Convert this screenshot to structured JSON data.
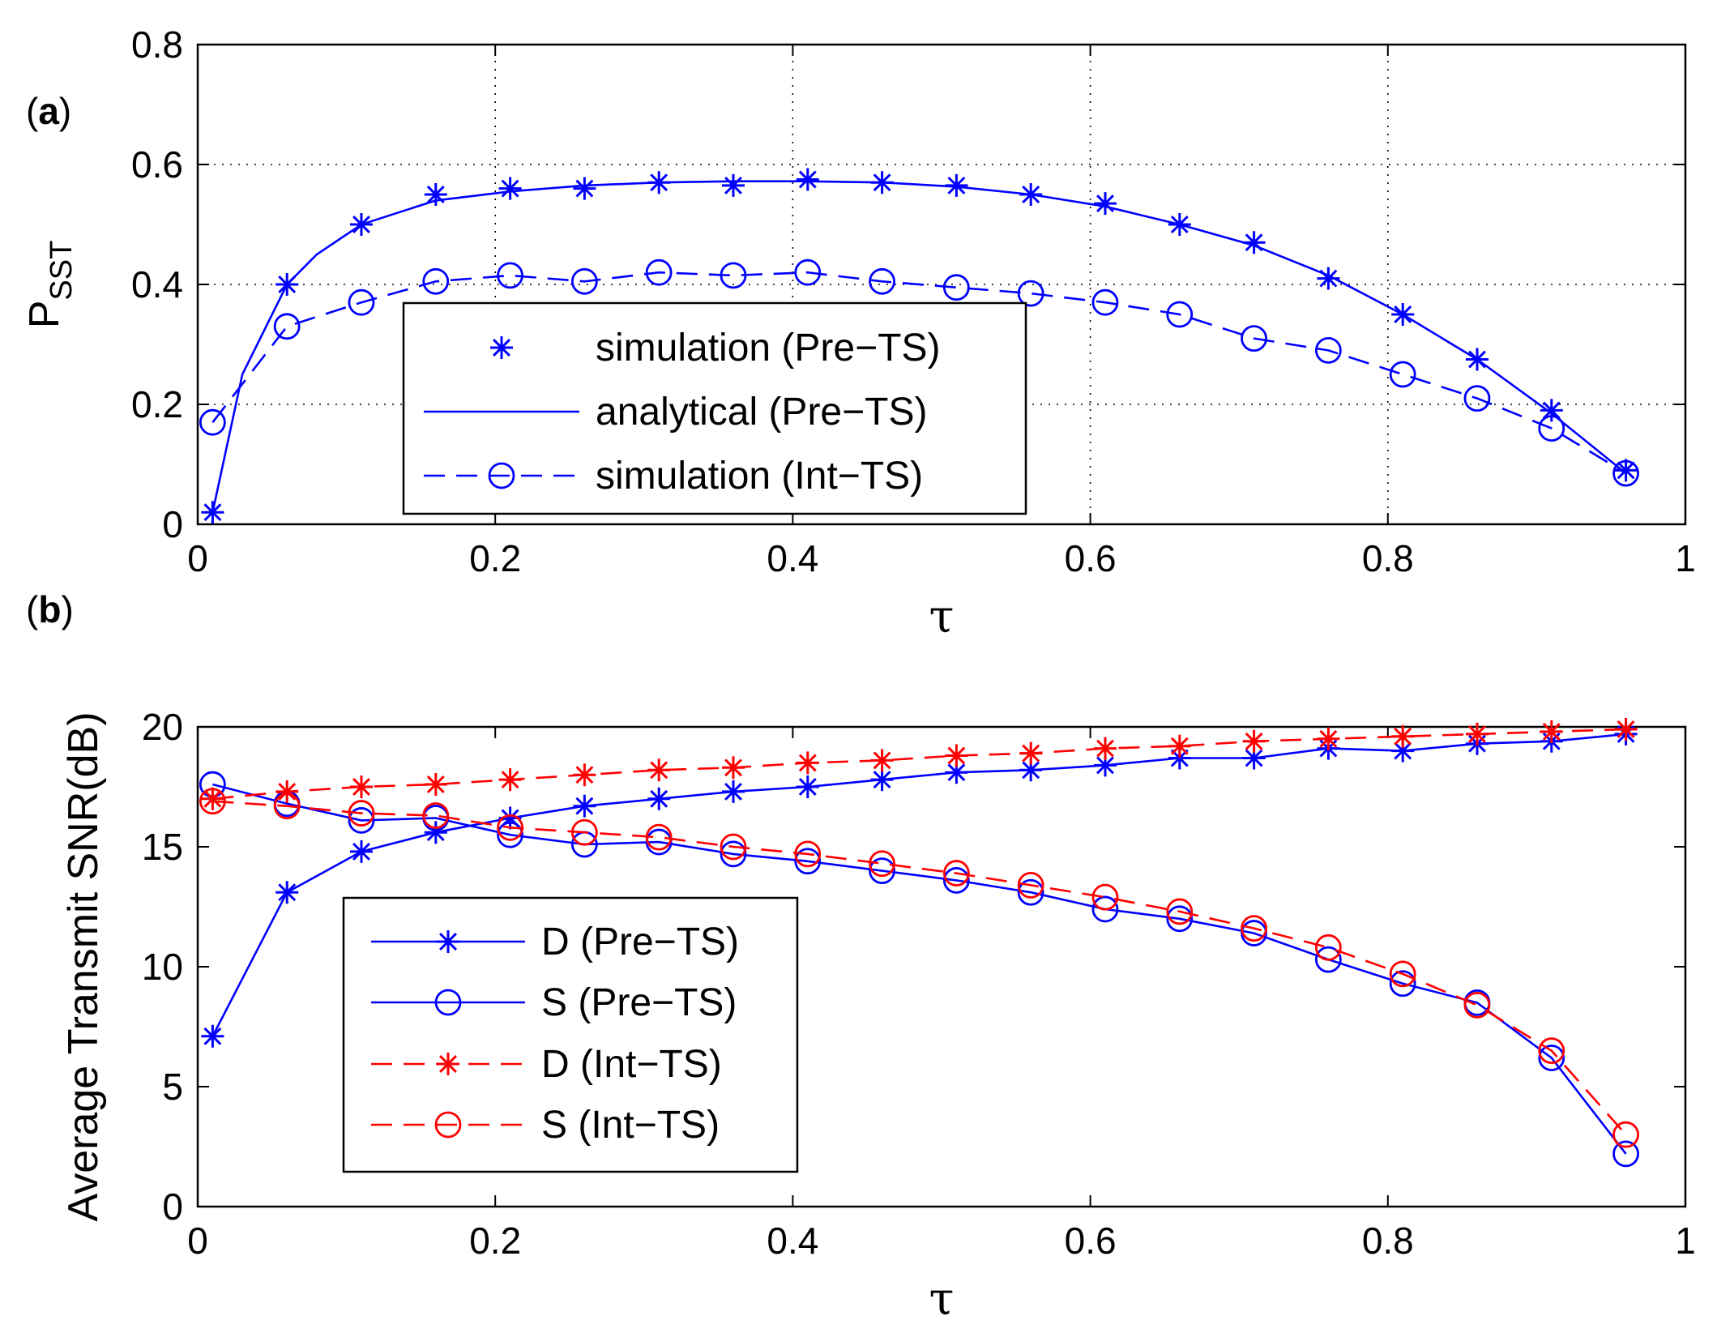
{
  "chart_data": [
    {
      "type": "line",
      "panel_label": "a",
      "title": "",
      "xlabel": "τ",
      "ylabel": "P",
      "ylabel_subscript": "SST",
      "xlim": [
        0,
        1
      ],
      "ylim": [
        0,
        0.8
      ],
      "xticks": [
        "0",
        "0.2",
        "0.4",
        "0.6",
        "0.8",
        "1"
      ],
      "yticks": [
        "0",
        "0.2",
        "0.4",
        "0.6",
        "0.8"
      ],
      "grid": true,
      "legend_position": "bottom-center",
      "series": [
        {
          "name": "simulation (Pre−TS)",
          "color": "#0000ff",
          "line": "none",
          "marker": "star",
          "x": [
            0.01,
            0.06,
            0.11,
            0.16,
            0.21,
            0.26,
            0.31,
            0.36,
            0.41,
            0.46,
            0.51,
            0.56,
            0.61,
            0.66,
            0.71,
            0.76,
            0.81,
            0.86,
            0.91,
            0.96
          ],
          "y": [
            0.02,
            0.4,
            0.5,
            0.55,
            0.56,
            0.56,
            0.57,
            0.565,
            0.575,
            0.57,
            0.565,
            0.55,
            0.535,
            0.5,
            0.47,
            0.41,
            0.35,
            0.275,
            0.19,
            0.09
          ]
        },
        {
          "name": "analytical (Pre−TS)",
          "color": "#0000ff",
          "line": "solid",
          "marker": "none",
          "x": [
            0.01,
            0.03,
            0.06,
            0.08,
            0.11,
            0.16,
            0.21,
            0.26,
            0.31,
            0.36,
            0.41,
            0.46,
            0.51,
            0.56,
            0.61,
            0.66,
            0.71,
            0.76,
            0.81,
            0.86,
            0.91,
            0.96
          ],
          "y": [
            0.02,
            0.25,
            0.4,
            0.45,
            0.5,
            0.54,
            0.555,
            0.565,
            0.57,
            0.572,
            0.572,
            0.57,
            0.563,
            0.55,
            0.53,
            0.5,
            0.465,
            0.415,
            0.35,
            0.275,
            0.185,
            0.085
          ]
        },
        {
          "name": "simulation (Int−TS)",
          "color": "#0000ff",
          "line": "dashed",
          "marker": "circle",
          "x": [
            0.01,
            0.06,
            0.11,
            0.16,
            0.21,
            0.26,
            0.31,
            0.36,
            0.41,
            0.46,
            0.51,
            0.56,
            0.61,
            0.66,
            0.71,
            0.76,
            0.81,
            0.86,
            0.91,
            0.96
          ],
          "y": [
            0.17,
            0.33,
            0.37,
            0.405,
            0.415,
            0.405,
            0.42,
            0.415,
            0.42,
            0.405,
            0.395,
            0.385,
            0.37,
            0.35,
            0.31,
            0.29,
            0.25,
            0.21,
            0.16,
            0.085
          ]
        }
      ]
    },
    {
      "type": "line",
      "panel_label": "b",
      "title": "",
      "xlabel": "τ",
      "ylabel": "Average Transmit SNR(dB)",
      "xlim": [
        0,
        1
      ],
      "ylim": [
        0,
        20
      ],
      "xticks": [
        "0",
        "0.2",
        "0.4",
        "0.6",
        "0.8",
        "1"
      ],
      "yticks": [
        "0",
        "5",
        "10",
        "15",
        "20"
      ],
      "grid": false,
      "legend_position": "bottom-left",
      "series": [
        {
          "name": "D (Pre−TS)",
          "color": "#0000ff",
          "line": "solid",
          "marker": "star",
          "x": [
            0.01,
            0.06,
            0.11,
            0.16,
            0.21,
            0.26,
            0.31,
            0.36,
            0.41,
            0.46,
            0.51,
            0.56,
            0.61,
            0.66,
            0.71,
            0.76,
            0.81,
            0.86,
            0.91,
            0.96
          ],
          "y": [
            7.1,
            13.1,
            14.8,
            15.6,
            16.2,
            16.7,
            17.0,
            17.3,
            17.5,
            17.8,
            18.1,
            18.2,
            18.4,
            18.7,
            18.7,
            19.1,
            19.0,
            19.3,
            19.4,
            19.7
          ]
        },
        {
          "name": "S (Pre−TS)",
          "color": "#0000ff",
          "line": "solid",
          "marker": "circle",
          "x": [
            0.01,
            0.06,
            0.11,
            0.16,
            0.21,
            0.26,
            0.31,
            0.36,
            0.41,
            0.46,
            0.51,
            0.56,
            0.61,
            0.66,
            0.71,
            0.76,
            0.81,
            0.86,
            0.91,
            0.96
          ],
          "y": [
            17.6,
            16.8,
            16.1,
            16.2,
            15.5,
            15.1,
            15.2,
            14.7,
            14.4,
            14.0,
            13.6,
            13.1,
            12.4,
            12.0,
            11.4,
            10.3,
            9.3,
            8.5,
            6.2,
            2.2
          ]
        },
        {
          "name": "D (Int−TS)",
          "color": "#ff0000",
          "line": "dashed",
          "marker": "star",
          "x": [
            0.01,
            0.06,
            0.11,
            0.16,
            0.21,
            0.26,
            0.31,
            0.36,
            0.41,
            0.46,
            0.51,
            0.56,
            0.61,
            0.66,
            0.71,
            0.76,
            0.81,
            0.86,
            0.91,
            0.96
          ],
          "y": [
            17.0,
            17.3,
            17.5,
            17.6,
            17.8,
            18.0,
            18.2,
            18.3,
            18.5,
            18.6,
            18.8,
            18.9,
            19.1,
            19.2,
            19.4,
            19.5,
            19.6,
            19.7,
            19.8,
            19.9
          ]
        },
        {
          "name": "S (Int−TS)",
          "color": "#ff0000",
          "line": "dashed",
          "marker": "circle",
          "x": [
            0.01,
            0.06,
            0.11,
            0.16,
            0.21,
            0.26,
            0.31,
            0.36,
            0.41,
            0.46,
            0.51,
            0.56,
            0.61,
            0.66,
            0.71,
            0.76,
            0.81,
            0.86,
            0.91,
            0.96
          ],
          "y": [
            16.9,
            16.7,
            16.4,
            16.3,
            15.8,
            15.6,
            15.4,
            15.0,
            14.7,
            14.3,
            13.9,
            13.4,
            12.9,
            12.3,
            11.6,
            10.8,
            9.7,
            8.4,
            6.5,
            3.0
          ]
        }
      ]
    }
  ]
}
